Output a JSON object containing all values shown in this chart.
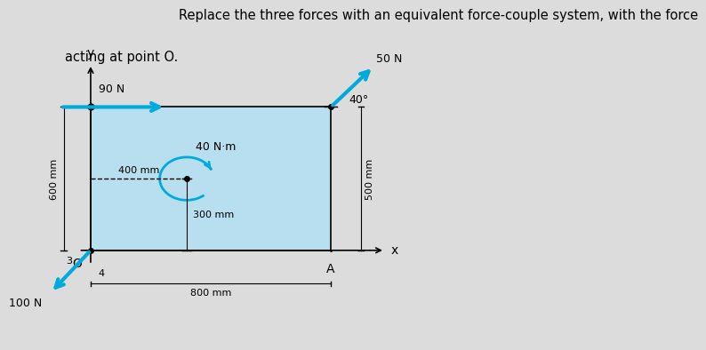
{
  "title_line1": "Replace the three forces with an equivalent force-couple system, with the force",
  "title_line2": "acting at point O.",
  "bg_color": "#b8dff0",
  "outer_bg": "#dcdcdc",
  "arrow_color": "#00aadd",
  "O_label": "O",
  "A_label": "A",
  "x_label": "x",
  "y_label": "y",
  "force1_label": "90 N",
  "force2_label": "50 N",
  "force3_label": "100 N",
  "couple_label": "40 N·m",
  "dim_left": "600 mm",
  "dim_bottom": "800 mm",
  "dim_right": "500 mm",
  "dim_h_couple": "400 mm",
  "dim_v_couple": "300 mm",
  "angle_label": "40°",
  "ratio_v": "4",
  "ratio_h": "3",
  "title_fontsize": 10.5,
  "label_fontsize": 9,
  "dim_fontsize": 8
}
